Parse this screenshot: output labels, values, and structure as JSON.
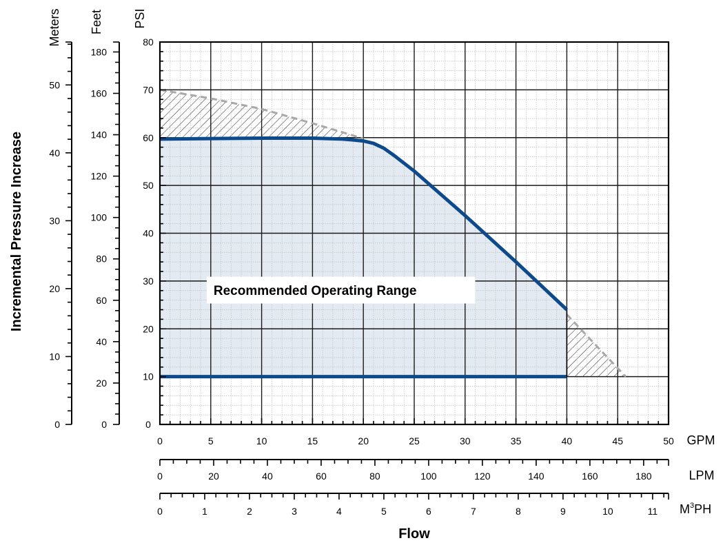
{
  "chart_data": {
    "type": "area",
    "xlabel": "Flow",
    "ylabel": "Incremental Pressure Increase",
    "annotation": "Recommended Operating Range",
    "colors": {
      "curve": "#0d4a8b",
      "fill": "#e4eaf2",
      "envelope": "#a8a8a8",
      "grid_major": "#1a1a1a",
      "grid_minor": "#bdbdbd"
    },
    "grid": true,
    "legend": "none",
    "x_axes": [
      {
        "unit": "GPM",
        "range": [
          0,
          50
        ],
        "ticks": [
          0,
          5,
          10,
          15,
          20,
          25,
          30,
          35,
          40,
          45,
          50
        ]
      },
      {
        "unit": "LPM",
        "range": [
          0,
          189.27
        ],
        "ticks": [
          0,
          20,
          40,
          60,
          80,
          100,
          120,
          140,
          160,
          180
        ]
      },
      {
        "unit": "M",
        "unit_sup": "3",
        "unit_tail": "PH",
        "range": [
          0,
          11.356
        ],
        "ticks": [
          0,
          1,
          2,
          3,
          4,
          5,
          6,
          7,
          8,
          9,
          10,
          11
        ]
      }
    ],
    "y_axes": [
      {
        "unit": "PSI",
        "range": [
          0,
          80
        ],
        "ticks": [
          0,
          10,
          20,
          30,
          40,
          50,
          60,
          70,
          80
        ]
      },
      {
        "unit": "Feet",
        "range": [
          0,
          184.8
        ],
        "ticks": [
          0,
          20,
          40,
          60,
          80,
          100,
          120,
          140,
          160,
          180
        ]
      },
      {
        "unit": "Meters",
        "range": [
          0,
          56.32
        ],
        "ticks": [
          0,
          10,
          20,
          30,
          40,
          50
        ]
      }
    ],
    "series": [
      {
        "role": "recommended-max",
        "style": "solid",
        "x": [
          0,
          5,
          10,
          15,
          18,
          20,
          21,
          22,
          23,
          25,
          30,
          35,
          40
        ],
        "y": [
          59.7,
          59.8,
          59.9,
          59.9,
          59.7,
          59.3,
          58.8,
          57.8,
          56.3,
          53.0,
          43.7,
          34.0,
          24.0
        ]
      },
      {
        "role": "recommended-min",
        "style": "solid",
        "x": [
          0,
          40
        ],
        "y": [
          10,
          10
        ]
      },
      {
        "role": "maximum-envelope",
        "style": "dashed",
        "x": [
          0,
          5,
          10,
          15,
          20,
          25,
          30,
          35,
          40,
          42,
          44,
          45.8
        ],
        "y": [
          70,
          68.2,
          66.0,
          63.0,
          59.8,
          55.0,
          49.0,
          38.0,
          23.0,
          18.5,
          14.0,
          10.0
        ]
      }
    ],
    "hatched_regions": [
      {
        "between": [
          "maximum-envelope",
          "recommended-max"
        ],
        "x_range": [
          0,
          20
        ]
      },
      {
        "between": [
          "maximum-envelope",
          "recommended-min"
        ],
        "x_range": [
          40,
          45.8
        ]
      }
    ]
  }
}
